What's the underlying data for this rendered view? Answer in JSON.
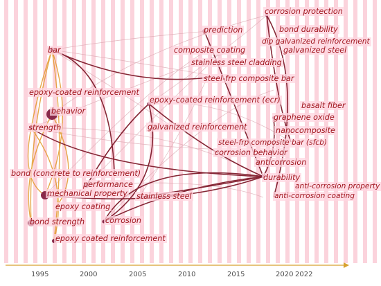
{
  "keywords": {
    "bar": "bar",
    "epoxy_coated_reinforcement": "epoxy-coated reinforcement",
    "behavior": "behavior",
    "strength": "strength",
    "bond_concrete": "bond (concrete to reinforcement)",
    "mechanical_property": "mechanical property",
    "epoxy_coating": "epoxy coating",
    "bond_strength": "bond strength",
    "epoxy_coated_reinforcement_2": "epoxy coated reinforcement",
    "performance": "performance",
    "corrosion": "corrosion",
    "stainless_steel": "stainless steel",
    "galvanized_reinforcement": "galvanized reinforcement",
    "epoxy_coated_reinforcement_ecr": "epoxy-coated reinforcement (ecr)",
    "prediction": "prediction",
    "composite_coating": "composite coating",
    "stainless_steel_cladding": "stainless steel cladding",
    "steel_frp_composite_bar": "steel-frp composite bar",
    "steel_frp_composite_bar_sfcb": "steel-frp composite bar (sfcb)",
    "corrosion_behavior": "corrosion behavior",
    "anticorrosion": "anticorrosion",
    "durability": "durability",
    "corrosion_protection": "corrosion protection",
    "bond_durability": "bond durability",
    "dip_galvanized_reinforcement": "dip galvanized reinforcement",
    "galvanized_steel": "galvanized steel",
    "basalt_fiber": "basalt fiber",
    "graphene_oxide": "graphene oxide",
    "nanocomposite": "nanocomposite",
    "anti_corrosion_property": "anti-corrosion property",
    "anti_corrosion_coating": "anti-corrosion coating"
  },
  "timeline": {
    "years": [
      "1995",
      "2000",
      "2005",
      "2010",
      "2015",
      "2020",
      "2022"
    ]
  },
  "colors": {
    "label_text": "#a1171f",
    "label_bg": "#ffd6e0",
    "stripe": "#fbd3dc",
    "link_dark": "#7a1222",
    "link_orange": "#e39a2c",
    "node": "#8a2a4a",
    "axis": "#d7a12e"
  }
}
